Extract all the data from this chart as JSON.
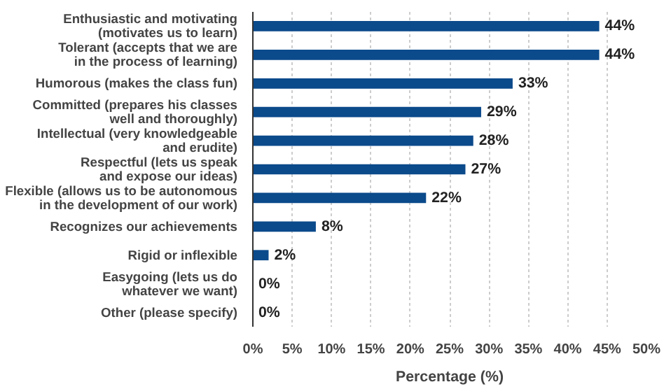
{
  "chart_data": {
    "type": "bar",
    "orientation": "horizontal",
    "xlabel": "Percentage (%)",
    "categories": [
      "Enthusiastic and motivating\n(motivates us to learn)",
      "Tolerant (accepts that we are\nin the process of learning)",
      "Humorous (makes the class fun)",
      "Committed (prepares his classes\nwell and thoroughly)",
      "Intellectual (very knowledgeable\nand erudite)",
      "Respectful (lets us speak\nand expose our ideas)",
      "Flexible (allows us to be autonomous\nin the development of our work)",
      "Recognizes our achievements",
      "Rigid or inflexible",
      "Easygoing (lets us do\nwhatever we want)",
      "Other (please specify)"
    ],
    "values": [
      44,
      44,
      33,
      29,
      28,
      27,
      22,
      8,
      2,
      0,
      0
    ],
    "value_labels": [
      "44%",
      "44%",
      "33%",
      "29%",
      "28%",
      "27%",
      "22%",
      "8%",
      "2%",
      "0%",
      "0%"
    ],
    "color": "#0b4a8b",
    "xlim": [
      0,
      50
    ],
    "xticks": [
      {
        "value": 0,
        "label": "0%"
      },
      {
        "value": 5,
        "label": "5%"
      },
      {
        "value": 10,
        "label": "10%"
      },
      {
        "value": 15,
        "label": "15%"
      },
      {
        "value": 20,
        "label": "20%"
      },
      {
        "value": 25,
        "label": "25%"
      },
      {
        "value": 30,
        "label": "30%"
      },
      {
        "value": 35,
        "label": "35%"
      },
      {
        "value": 40,
        "label": "40%"
      },
      {
        "value": 45,
        "label": "45%"
      },
      {
        "value": 50,
        "label": "50%"
      }
    ],
    "grid": "x"
  }
}
